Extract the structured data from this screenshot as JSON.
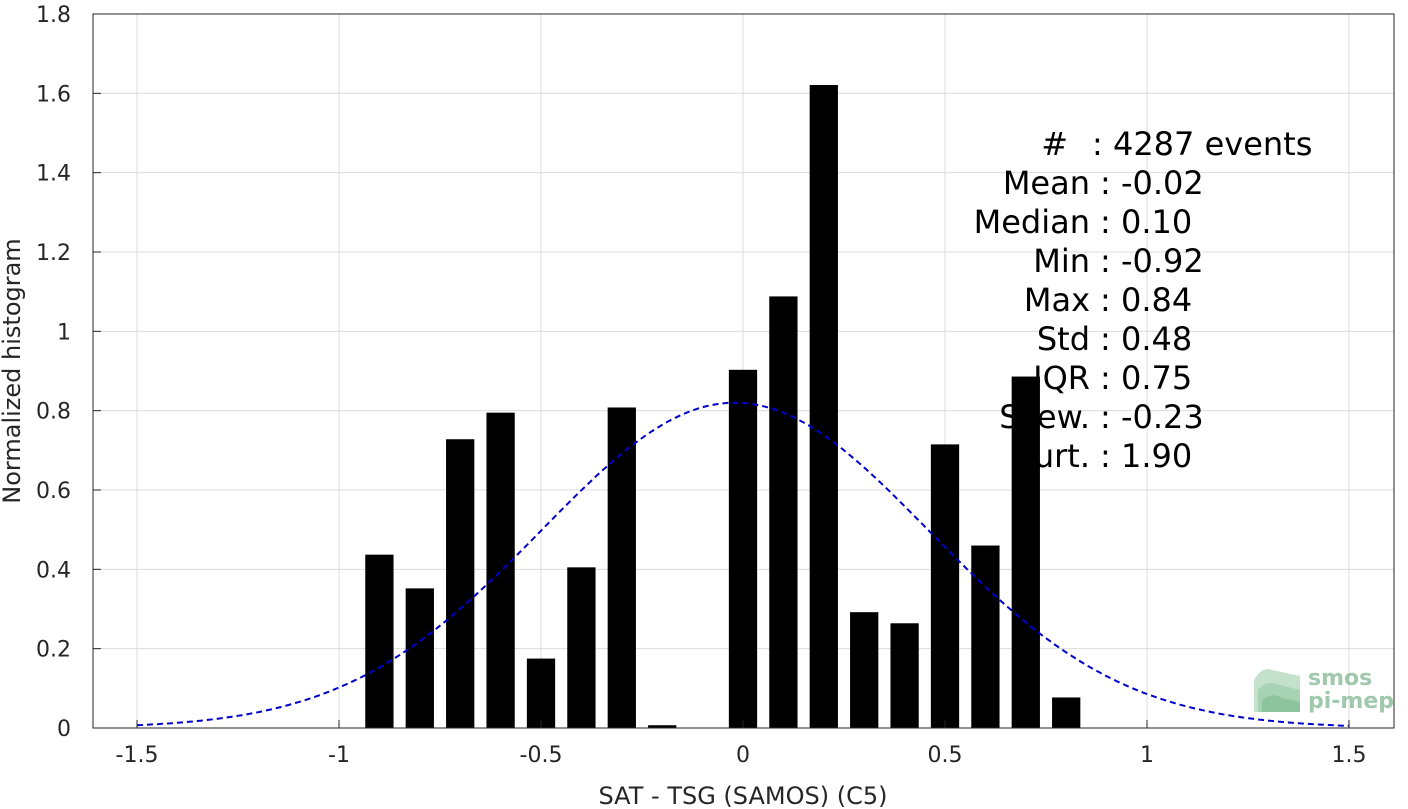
{
  "chart_data": {
    "type": "bar",
    "xlabel": "SAT - TSG (SAMOS) (C5)",
    "ylabel": "Normalized histogram",
    "xlim": [
      -1.5,
      1.5
    ],
    "ylim": [
      0,
      1.8
    ],
    "x_ticks": [
      "-1.5",
      "-1",
      "-0.5",
      "0",
      "0.5",
      "1",
      "1.5"
    ],
    "y_ticks": [
      "0",
      "0.2",
      "0.4",
      "0.6",
      "0.8",
      "1",
      "1.2",
      "1.4",
      "1.6",
      "1.8"
    ],
    "grid": true,
    "bar_width": 0.07,
    "bars": {
      "x": [
        -0.9,
        -0.8,
        -0.7,
        -0.6,
        -0.5,
        -0.4,
        -0.3,
        -0.2,
        0.0,
        0.1,
        0.2,
        0.3,
        0.4,
        0.5,
        0.6,
        0.7,
        0.8
      ],
      "values": [
        0.437,
        0.352,
        0.728,
        0.795,
        0.175,
        0.405,
        0.808,
        0.007,
        0.903,
        1.088,
        1.621,
        0.292,
        0.264,
        0.715,
        0.46,
        0.886,
        0.077
      ],
      "color": "#000000"
    },
    "fit_curve": {
      "style": "dashed",
      "color": "#0000cc",
      "mean": -0.02,
      "std": 0.48,
      "peak": 0.82
    },
    "stats": [
      {
        "label": "#",
        "value": ": 4287 events"
      },
      {
        "label": "Mean",
        "value": ": -0.02"
      },
      {
        "label": "Median",
        "value": ": 0.10"
      },
      {
        "label": "Min",
        "value": ": -0.92"
      },
      {
        "label": "Max",
        "value": ": 0.84"
      },
      {
        "label": "Std",
        "value": ": 0.48"
      },
      {
        "label": "IQR",
        "value": ": 0.75"
      },
      {
        "label": "Skew.",
        "value": ": -0.23"
      },
      {
        "label": "Kurt.",
        "value": ": 1.90"
      }
    ]
  },
  "logo": {
    "line1": "smos",
    "line2": "pi-mep"
  }
}
